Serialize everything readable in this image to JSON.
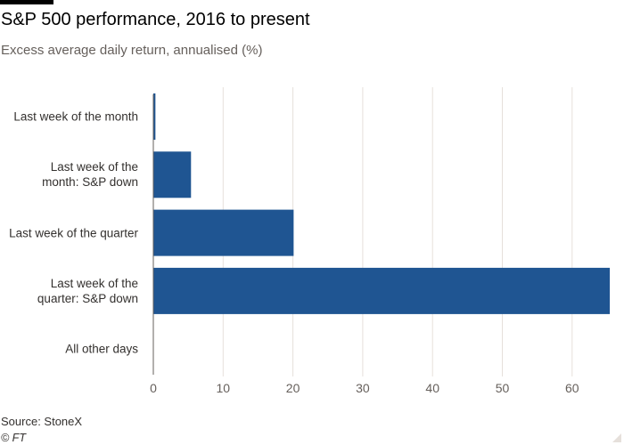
{
  "header": {
    "title": "S&P 500 performance, 2016 to present",
    "subtitle": "Excess average daily return, annualised (%)"
  },
  "footer": {
    "source": "Source: StoneX",
    "copyright": "© FT"
  },
  "colors": {
    "bar": "#1f5592",
    "grid": "#e6e0db",
    "axis": "#66605c",
    "text": "#33302e"
  },
  "chart_data": {
    "type": "bar",
    "orientation": "horizontal",
    "categories": [
      [
        "Last week of the month"
      ],
      [
        "Last week of the",
        "month: S&P down"
      ],
      [
        "Last week of the quarter"
      ],
      [
        "Last week of the",
        "quarter: S&P down"
      ],
      [
        "All other days"
      ]
    ],
    "values": [
      0.3,
      5.4,
      20.1,
      65.4,
      0
    ],
    "title": "S&P 500 performance, 2016 to present",
    "subtitle": "Excess average daily return, annualised (%)",
    "xlabel": "",
    "ylabel": "",
    "xlim": [
      0,
      66
    ],
    "xticks": [
      0,
      10,
      20,
      30,
      40,
      50,
      60
    ],
    "grid": true,
    "legend": "none"
  }
}
